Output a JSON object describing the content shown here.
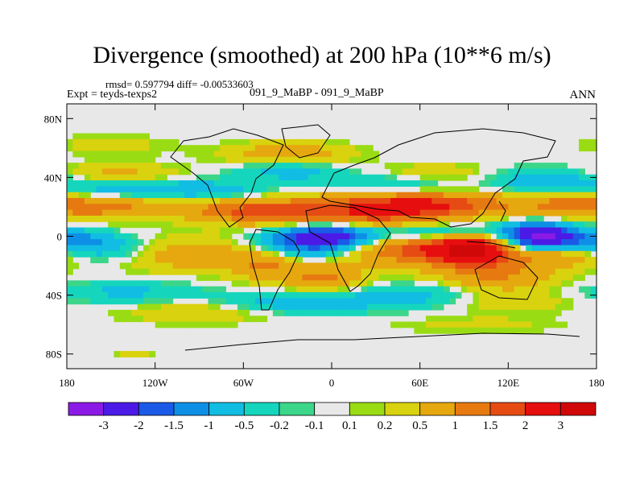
{
  "chart_data": {
    "type": "heatmap",
    "title": "Divergence (smoothed) at 200 hPa (10**6 m/s)",
    "subtitle_stats": "rmsd= 0.597794 diff= -0.00533603",
    "experiment_label": "Expt = teyds-texps2",
    "center_label": "091_9_MaBP - 091_9_MaBP",
    "season": "ANN",
    "x_range": [
      -180,
      180
    ],
    "y_range": [
      -90,
      90
    ],
    "x_ticks": [
      -180,
      -120,
      -60,
      0,
      60,
      120,
      180
    ],
    "x_tick_labels": [
      "180",
      "120W",
      "60W",
      "0",
      "60E",
      "120E",
      "180"
    ],
    "y_ticks": [
      80,
      40,
      0,
      -40,
      -80
    ],
    "y_tick_labels": [
      "80N",
      "40N",
      "0",
      "40S",
      "80S"
    ],
    "colorbar_levels": [
      "-3",
      "-2",
      "-1.5",
      "-1",
      "-0.5",
      "-0.2",
      "-0.1",
      "0.1",
      "0.2",
      "0.5",
      "1",
      "1.5",
      "2",
      "3"
    ],
    "colorbar_colors": [
      "#8B1AE6",
      "#4B1AE6",
      "#1A5AE6",
      "#0E8FE6",
      "#11BDE3",
      "#15D6BD",
      "#3CD68A",
      "#E8E8E8",
      "#9ADC14",
      "#D9D20E",
      "#E6A80F",
      "#E67A11",
      "#E64B14",
      "#E60E0E",
      "#D00808"
    ],
    "features": [
      {
        "lon": 140,
        "lat": 0,
        "value": -3,
        "sx": 16,
        "sy": 6
      },
      {
        "lon": 0,
        "lat": 0,
        "value": -2.3,
        "sx": 20,
        "sy": 6
      },
      {
        "lon": -25,
        "lat": -5,
        "value": -1.3,
        "sx": 22,
        "sy": 8
      },
      {
        "lon": 70,
        "lat": 2,
        "value": -1.4,
        "sx": 38,
        "sy": 5
      },
      {
        "lon": 175,
        "lat": -2,
        "value": -1.1,
        "sx": 22,
        "sy": 5
      },
      {
        "lon": -160,
        "lat": -8,
        "value": -0.9,
        "sx": 28,
        "sy": 6
      },
      {
        "lon": 95,
        "lat": -8,
        "value": 3,
        "sx": 20,
        "sy": 7
      },
      {
        "lon": 50,
        "lat": -8,
        "value": 1.5,
        "sx": 28,
        "sy": 8
      },
      {
        "lon": 110,
        "lat": -25,
        "value": 1.1,
        "sx": 30,
        "sy": 10
      },
      {
        "lon": 160,
        "lat": -12,
        "value": 0.9,
        "sx": 22,
        "sy": 6
      },
      {
        "lon": -100,
        "lat": -12,
        "value": 0.9,
        "sx": 30,
        "sy": 8
      },
      {
        "lon": -45,
        "lat": -18,
        "value": 1.1,
        "sx": 18,
        "sy": 8
      },
      {
        "lon": -5,
        "lat": -28,
        "value": 1.1,
        "sx": 20,
        "sy": 7
      },
      {
        "lon": 15,
        "lat": 15,
        "value": 1.6,
        "sx": 45,
        "sy": 8
      },
      {
        "lon": 65,
        "lat": 22,
        "value": 1.7,
        "sx": 40,
        "sy": 6
      },
      {
        "lon": -60,
        "lat": 18,
        "value": 1.3,
        "sx": 28,
        "sy": 6
      },
      {
        "lon": -150,
        "lat": 20,
        "value": 1.1,
        "sx": 32,
        "sy": 6
      },
      {
        "lon": 160,
        "lat": 22,
        "value": 0.9,
        "sx": 26,
        "sy": 6
      },
      {
        "lon": -130,
        "lat": 32,
        "value": -0.9,
        "sx": 40,
        "sy": 5
      },
      {
        "lon": -75,
        "lat": 30,
        "value": -0.5,
        "sx": 25,
        "sy": 5
      },
      {
        "lon": -30,
        "lat": 45,
        "value": -0.8,
        "sx": 28,
        "sy": 5
      },
      {
        "lon": 40,
        "lat": 35,
        "value": -0.7,
        "sx": 35,
        "sy": 5
      },
      {
        "lon": 150,
        "lat": 38,
        "value": -1.0,
        "sx": 28,
        "sy": 6
      },
      {
        "lon": -150,
        "lat": 42,
        "value": 0.7,
        "sx": 35,
        "sy": 5
      },
      {
        "lon": -30,
        "lat": 55,
        "value": 0.9,
        "sx": 30,
        "sy": 6
      },
      {
        "lon": 70,
        "lat": 42,
        "value": 0.5,
        "sx": 30,
        "sy": 5
      },
      {
        "lon": -150,
        "lat": 62,
        "value": 0.3,
        "sx": 30,
        "sy": 5
      },
      {
        "lon": -20,
        "lat": -45,
        "value": -0.9,
        "sx": 35,
        "sy": 5
      },
      {
        "lon": 60,
        "lat": -40,
        "value": -0.7,
        "sx": 35,
        "sy": 6
      },
      {
        "lon": -140,
        "lat": -38,
        "value": -0.6,
        "sx": 35,
        "sy": 5
      },
      {
        "lon": 120,
        "lat": -45,
        "value": 0.4,
        "sx": 30,
        "sy": 5
      },
      {
        "lon": -90,
        "lat": -52,
        "value": 0.5,
        "sx": 35,
        "sy": 5
      },
      {
        "lon": 100,
        "lat": -60,
        "value": 0.3,
        "sx": 40,
        "sy": 4
      },
      {
        "lon": -135,
        "lat": -80,
        "value": 0.3,
        "sx": 10,
        "sy": 2
      }
    ]
  }
}
